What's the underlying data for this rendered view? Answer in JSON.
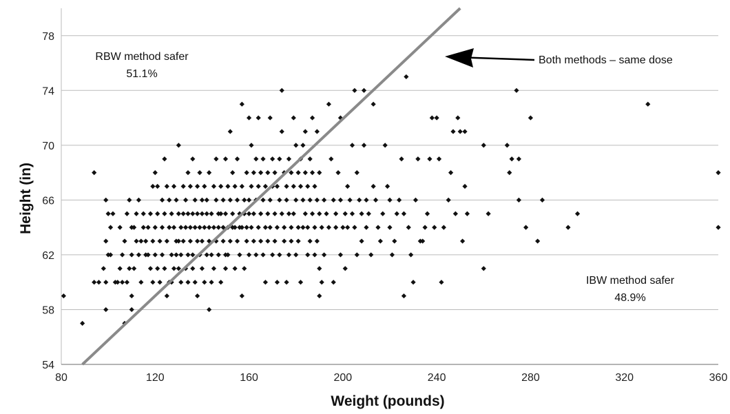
{
  "chart_data": {
    "type": "scatter",
    "title": "",
    "xlabel": "Weight (pounds)",
    "ylabel": "Height (in)",
    "xlim": [
      80,
      360
    ],
    "ylim": [
      54,
      80
    ],
    "xticks": [
      80,
      120,
      160,
      200,
      240,
      280,
      320,
      360
    ],
    "yticks": [
      54,
      58,
      62,
      66,
      70,
      74,
      78
    ],
    "xtick_labels": [
      "80",
      "120",
      "160",
      "200",
      "240",
      "280",
      "320",
      "360"
    ],
    "ytick_labels": [
      "54",
      "58",
      "62",
      "66",
      "70",
      "74",
      "78"
    ],
    "grid": "horizontal",
    "colors": {
      "points": "#111111",
      "line": "#8a8a8a",
      "grid": "#bbbbbb",
      "arrow": "#000000"
    },
    "line": {
      "x": [
        89,
        250
      ],
      "y": [
        54,
        80
      ]
    },
    "annotations": {
      "upper_left_label": "RBW method safer",
      "upper_left_value": "51.1%",
      "lower_right_label": "IBW method safer",
      "lower_right_value": "48.9%",
      "arrow_label": "Both methods – same dose"
    },
    "points": [
      [
        81,
        59
      ],
      [
        89,
        57
      ],
      [
        94,
        68
      ],
      [
        94,
        60
      ],
      [
        96,
        60
      ],
      [
        98,
        61
      ],
      [
        99,
        66
      ],
      [
        99,
        63
      ],
      [
        99,
        60
      ],
      [
        99,
        58
      ],
      [
        100,
        62
      ],
      [
        100,
        65
      ],
      [
        101,
        64
      ],
      [
        101,
        62
      ],
      [
        102,
        65
      ],
      [
        103,
        60
      ],
      [
        104,
        60
      ],
      [
        105,
        64
      ],
      [
        105,
        61
      ],
      [
        106,
        60
      ],
      [
        106,
        62
      ],
      [
        107,
        63
      ],
      [
        107,
        57
      ],
      [
        108,
        60
      ],
      [
        108,
        65
      ],
      [
        109,
        61
      ],
      [
        109,
        66
      ],
      [
        110,
        64
      ],
      [
        110,
        62
      ],
      [
        110,
        59
      ],
      [
        110,
        58
      ],
      [
        111,
        64
      ],
      [
        111,
        61
      ],
      [
        112,
        65
      ],
      [
        112,
        63
      ],
      [
        113,
        62
      ],
      [
        113,
        66
      ],
      [
        114,
        63
      ],
      [
        114,
        60
      ],
      [
        115,
        65
      ],
      [
        115,
        64
      ],
      [
        116,
        63
      ],
      [
        116,
        62
      ],
      [
        117,
        62
      ],
      [
        117,
        64
      ],
      [
        118,
        65
      ],
      [
        118,
        61
      ],
      [
        119,
        67
      ],
      [
        119,
        63
      ],
      [
        119,
        60
      ],
      [
        120,
        68
      ],
      [
        120,
        64
      ],
      [
        120,
        62
      ],
      [
        121,
        67
      ],
      [
        121,
        65
      ],
      [
        121,
        61
      ],
      [
        122,
        63
      ],
      [
        122,
        60
      ],
      [
        123,
        66
      ],
      [
        123,
        64
      ],
      [
        123,
        62
      ],
      [
        124,
        69
      ],
      [
        124,
        65
      ],
      [
        124,
        61
      ],
      [
        125,
        67
      ],
      [
        125,
        63
      ],
      [
        125,
        59
      ],
      [
        126,
        66
      ],
      [
        126,
        64
      ],
      [
        126,
        60
      ],
      [
        127,
        65
      ],
      [
        127,
        62
      ],
      [
        127,
        60
      ],
      [
        128,
        67
      ],
      [
        128,
        64
      ],
      [
        128,
        61
      ],
      [
        129,
        66
      ],
      [
        129,
        63
      ],
      [
        129,
        62
      ],
      [
        130,
        70
      ],
      [
        130,
        65
      ],
      [
        130,
        63
      ],
      [
        130,
        61
      ],
      [
        131,
        64
      ],
      [
        131,
        62
      ],
      [
        131,
        60
      ],
      [
        132,
        67
      ],
      [
        132,
        65
      ],
      [
        132,
        63
      ],
      [
        133,
        66
      ],
      [
        133,
        64
      ],
      [
        133,
        61
      ],
      [
        134,
        68
      ],
      [
        134,
        65
      ],
      [
        134,
        62
      ],
      [
        134,
        60
      ],
      [
        135,
        67
      ],
      [
        135,
        64
      ],
      [
        135,
        63
      ],
      [
        136,
        69
      ],
      [
        136,
        65
      ],
      [
        136,
        62
      ],
      [
        136,
        61
      ],
      [
        137,
        66
      ],
      [
        137,
        64
      ],
      [
        137,
        60
      ],
      [
        138,
        67
      ],
      [
        138,
        65
      ],
      [
        138,
        63
      ],
      [
        138,
        59
      ],
      [
        139,
        68
      ],
      [
        139,
        64
      ],
      [
        139,
        62
      ],
      [
        140,
        66
      ],
      [
        140,
        65
      ],
      [
        140,
        63
      ],
      [
        140,
        61
      ],
      [
        141,
        67
      ],
      [
        141,
        64
      ],
      [
        141,
        60
      ],
      [
        142,
        66
      ],
      [
        142,
        65
      ],
      [
        142,
        62
      ],
      [
        143,
        68
      ],
      [
        143,
        64
      ],
      [
        143,
        63
      ],
      [
        143,
        58
      ],
      [
        144,
        65
      ],
      [
        144,
        62
      ],
      [
        144,
        60
      ],
      [
        145,
        67
      ],
      [
        145,
        64
      ],
      [
        145,
        61
      ],
      [
        146,
        69
      ],
      [
        146,
        66
      ],
      [
        146,
        63
      ],
      [
        147,
        65
      ],
      [
        147,
        64
      ],
      [
        147,
        62
      ],
      [
        148,
        67
      ],
      [
        148,
        65
      ],
      [
        148,
        60
      ],
      [
        149,
        66
      ],
      [
        149,
        64
      ],
      [
        149,
        63
      ],
      [
        150,
        69
      ],
      [
        150,
        65
      ],
      [
        150,
        62
      ],
      [
        150,
        61
      ],
      [
        151,
        67
      ],
      [
        151,
        64
      ],
      [
        151,
        62
      ],
      [
        152,
        71
      ],
      [
        152,
        66
      ],
      [
        152,
        63
      ],
      [
        153,
        68
      ],
      [
        153,
        65
      ],
      [
        153,
        64
      ],
      [
        154,
        67
      ],
      [
        154,
        64
      ],
      [
        154,
        61
      ],
      [
        155,
        69
      ],
      [
        155,
        66
      ],
      [
        155,
        63
      ],
      [
        156,
        65
      ],
      [
        156,
        64
      ],
      [
        156,
        62
      ],
      [
        157,
        73
      ],
      [
        157,
        67
      ],
      [
        157,
        64
      ],
      [
        157,
        59
      ],
      [
        158,
        66
      ],
      [
        158,
        65
      ],
      [
        158,
        61
      ],
      [
        159,
        68
      ],
      [
        159,
        64
      ],
      [
        159,
        63
      ],
      [
        160,
        72
      ],
      [
        160,
        66
      ],
      [
        160,
        65
      ],
      [
        160,
        62
      ],
      [
        161,
        70
      ],
      [
        161,
        67
      ],
      [
        161,
        64
      ],
      [
        162,
        68
      ],
      [
        162,
        65
      ],
      [
        162,
        63
      ],
      [
        163,
        69
      ],
      [
        163,
        66
      ],
      [
        163,
        62
      ],
      [
        164,
        72
      ],
      [
        164,
        67
      ],
      [
        164,
        64
      ],
      [
        165,
        68
      ],
      [
        165,
        65
      ],
      [
        165,
        63
      ],
      [
        166,
        69
      ],
      [
        166,
        66
      ],
      [
        166,
        62
      ],
      [
        167,
        67
      ],
      [
        167,
        64
      ],
      [
        167,
        60
      ],
      [
        168,
        68
      ],
      [
        168,
        65
      ],
      [
        168,
        63
      ],
      [
        169,
        72
      ],
      [
        169,
        66
      ],
      [
        169,
        64
      ],
      [
        170,
        69
      ],
      [
        170,
        67
      ],
      [
        170,
        62
      ],
      [
        171,
        68
      ],
      [
        171,
        65
      ],
      [
        171,
        63
      ],
      [
        172,
        67
      ],
      [
        172,
        64
      ],
      [
        172,
        60
      ],
      [
        173,
        69
      ],
      [
        173,
        66
      ],
      [
        173,
        62
      ],
      [
        174,
        74
      ],
      [
        174,
        71
      ],
      [
        174,
        65
      ],
      [
        175,
        68
      ],
      [
        175,
        64
      ],
      [
        175,
        63
      ],
      [
        176,
        67
      ],
      [
        176,
        66
      ],
      [
        176,
        60
      ],
      [
        177,
        69
      ],
      [
        177,
        65
      ],
      [
        177,
        62
      ],
      [
        178,
        68
      ],
      [
        178,
        64
      ],
      [
        178,
        63
      ],
      [
        179,
        72
      ],
      [
        179,
        67
      ],
      [
        179,
        65
      ],
      [
        180,
        70
      ],
      [
        180,
        66
      ],
      [
        180,
        62
      ],
      [
        181,
        68
      ],
      [
        181,
        64
      ],
      [
        181,
        63
      ],
      [
        182,
        69
      ],
      [
        182,
        67
      ],
      [
        182,
        60
      ],
      [
        183,
        70
      ],
      [
        183,
        66
      ],
      [
        183,
        64
      ],
      [
        184,
        71
      ],
      [
        184,
        68
      ],
      [
        184,
        65
      ],
      [
        185,
        67
      ],
      [
        185,
        64
      ],
      [
        185,
        62
      ],
      [
        186,
        69
      ],
      [
        186,
        66
      ],
      [
        186,
        63
      ],
      [
        187,
        72
      ],
      [
        187,
        68
      ],
      [
        187,
        65
      ],
      [
        188,
        67
      ],
      [
        188,
        64
      ],
      [
        188,
        62
      ],
      [
        189,
        71
      ],
      [
        189,
        66
      ],
      [
        189,
        63
      ],
      [
        190,
        68
      ],
      [
        190,
        65
      ],
      [
        190,
        61
      ],
      [
        190,
        59
      ],
      [
        191,
        64
      ],
      [
        191,
        60
      ],
      [
        192,
        66
      ],
      [
        192,
        62
      ],
      [
        193,
        65
      ],
      [
        194,
        73
      ],
      [
        194,
        64
      ],
      [
        195,
        69
      ],
      [
        196,
        66
      ],
      [
        196,
        60
      ],
      [
        197,
        65
      ],
      [
        197,
        64
      ],
      [
        198,
        68
      ],
      [
        199,
        72
      ],
      [
        199,
        66
      ],
      [
        199,
        62
      ],
      [
        200,
        64
      ],
      [
        201,
        65
      ],
      [
        201,
        61
      ],
      [
        202,
        67
      ],
      [
        202,
        64
      ],
      [
        203,
        66
      ],
      [
        204,
        70
      ],
      [
        204,
        65
      ],
      [
        205,
        74
      ],
      [
        205,
        64
      ],
      [
        206,
        68
      ],
      [
        206,
        62
      ],
      [
        207,
        66
      ],
      [
        208,
        65
      ],
      [
        208,
        63
      ],
      [
        209,
        74
      ],
      [
        209,
        70
      ],
      [
        210,
        66
      ],
      [
        210,
        64
      ],
      [
        211,
        65
      ],
      [
        212,
        62
      ],
      [
        213,
        73
      ],
      [
        213,
        67
      ],
      [
        214,
        66
      ],
      [
        215,
        64
      ],
      [
        216,
        63
      ],
      [
        217,
        65
      ],
      [
        218,
        70
      ],
      [
        219,
        67
      ],
      [
        220,
        66
      ],
      [
        220,
        64
      ],
      [
        221,
        62
      ],
      [
        222,
        63
      ],
      [
        223,
        65
      ],
      [
        224,
        66
      ],
      [
        225,
        69
      ],
      [
        226,
        59
      ],
      [
        226,
        65
      ],
      [
        227,
        75
      ],
      [
        228,
        64
      ],
      [
        229,
        62
      ],
      [
        230,
        60
      ],
      [
        231,
        66
      ],
      [
        232,
        69
      ],
      [
        233,
        63
      ],
      [
        234,
        63
      ],
      [
        235,
        64
      ],
      [
        236,
        65
      ],
      [
        237,
        69
      ],
      [
        238,
        72
      ],
      [
        239,
        64
      ],
      [
        240,
        72
      ],
      [
        241,
        69
      ],
      [
        242,
        60
      ],
      [
        243,
        64
      ],
      [
        245,
        66
      ],
      [
        246,
        68
      ],
      [
        247,
        71
      ],
      [
        248,
        65
      ],
      [
        249,
        72
      ],
      [
        250,
        71
      ],
      [
        251,
        63
      ],
      [
        252,
        71
      ],
      [
        252,
        67
      ],
      [
        253,
        65
      ],
      [
        260,
        70
      ],
      [
        260,
        61
      ],
      [
        262,
        65
      ],
      [
        270,
        70
      ],
      [
        271,
        68
      ],
      [
        272,
        69
      ],
      [
        274,
        74
      ],
      [
        275,
        69
      ],
      [
        275,
        66
      ],
      [
        278,
        64
      ],
      [
        280,
        72
      ],
      [
        283,
        63
      ],
      [
        285,
        66
      ],
      [
        296,
        64
      ],
      [
        300,
        65
      ],
      [
        330,
        73
      ],
      [
        360,
        68
      ],
      [
        360,
        64
      ]
    ]
  }
}
